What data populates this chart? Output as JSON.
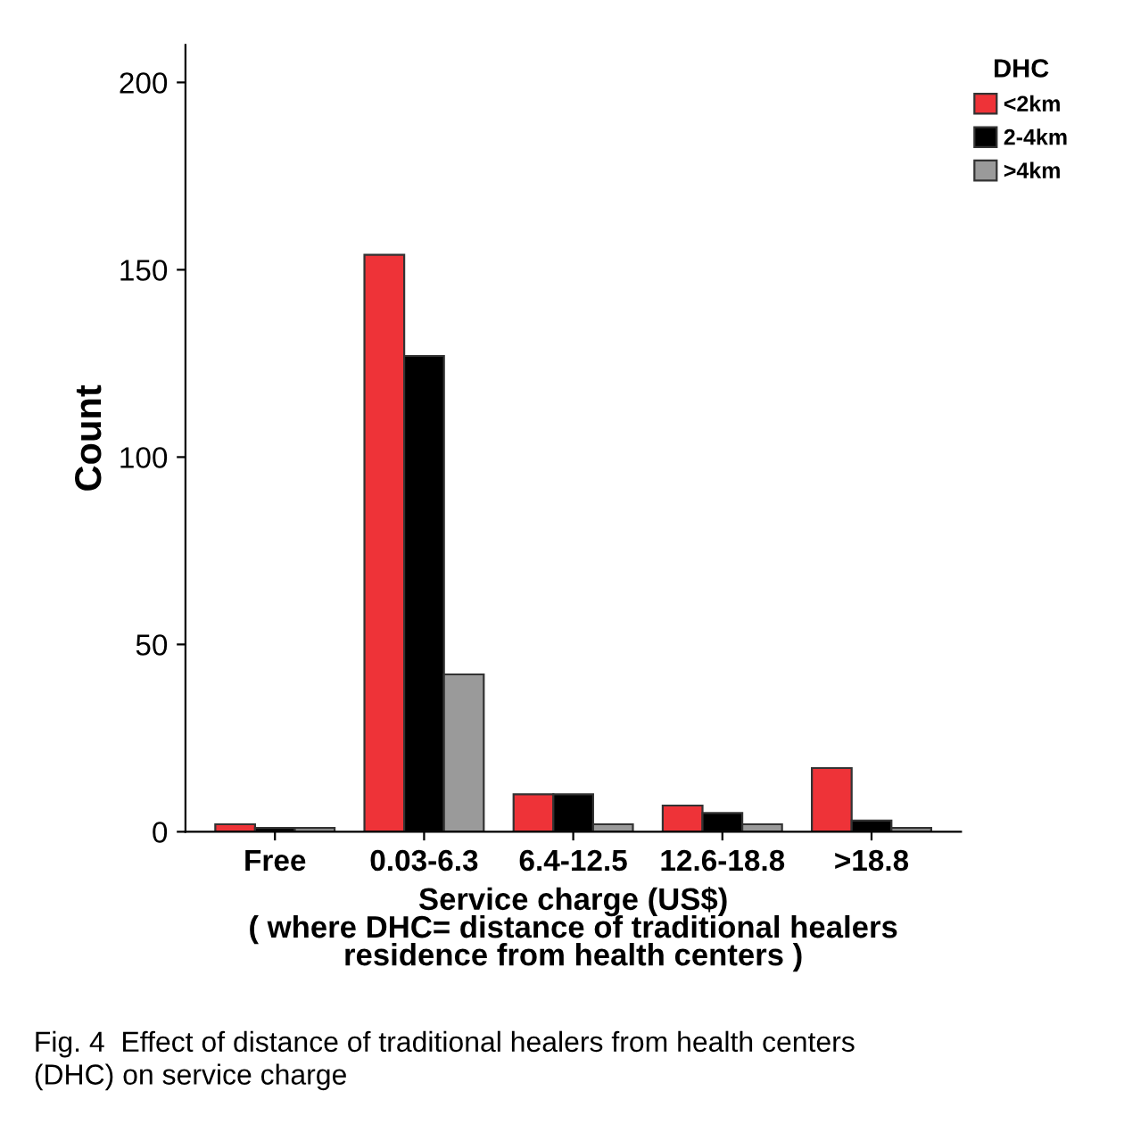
{
  "chart_data": {
    "type": "bar",
    "xlabel": "Service charge (US$)\n( where DHC= distance of traditional healers\nresidence from health centers )",
    "ylabel": "Count",
    "legend_title": "DHC",
    "legend": "top right",
    "categories": [
      "Free",
      "0.03-6.3",
      "6.4-12.5",
      "12.6-18.8",
      ">18.8"
    ],
    "series": [
      {
        "name": "<2km",
        "color": "#ee3338",
        "values": [
          2,
          154,
          10,
          7,
          17
        ]
      },
      {
        "name": "2-4km",
        "color": "#000000",
        "values": [
          1,
          127,
          10,
          5,
          3
        ]
      },
      {
        "name": ">4km",
        "color": "#9a9a9a",
        "values": [
          1,
          42,
          2,
          2,
          1
        ]
      }
    ],
    "ylim": [
      0,
      210
    ],
    "yticks": [
      0,
      50,
      100,
      150,
      200
    ],
    "grid": false,
    "annotations": [
      "Fig. 4  Effect of distance of traditional healers from health centers\n(DHC) on service charge"
    ]
  }
}
